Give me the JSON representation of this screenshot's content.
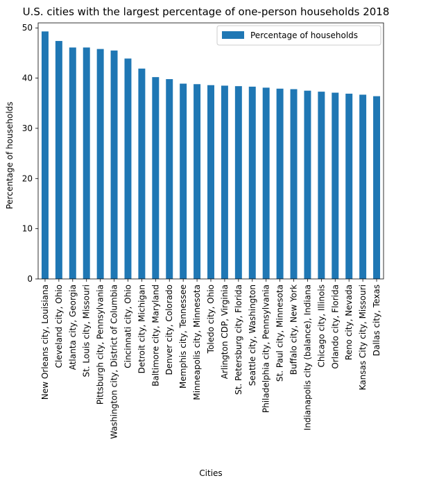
{
  "chart_data": {
    "type": "bar",
    "title": "U.S. cities with the largest percentage of one-person households 2018",
    "xlabel": "Cities",
    "ylabel": "Percentage of households",
    "ylim": [
      0,
      51
    ],
    "yticks": [
      0,
      10,
      20,
      30,
      40,
      50
    ],
    "grid": false,
    "legend_position": "top-right",
    "bar_color": "#1f77b4",
    "series": [
      {
        "name": "Percentage of households",
        "values": [
          49.3,
          47.4,
          46.1,
          46.1,
          45.8,
          45.5,
          43.9,
          41.9,
          40.2,
          39.8,
          38.9,
          38.8,
          38.6,
          38.5,
          38.4,
          38.3,
          38.1,
          37.9,
          37.8,
          37.5,
          37.3,
          37.1,
          36.9,
          36.7,
          36.4
        ]
      }
    ],
    "categories": [
      "New Orleans city, Louisiana",
      "Cleveland city, Ohio",
      "Atlanta city, Georgia",
      "St. Louis city, Missouri",
      "Pittsburgh city, Pennsylvania",
      "Washington city, District of Columbia",
      "Cincinnati city, Ohio",
      "Detroit city, Michigan",
      "Baltimore city, Maryland",
      "Denver city, Colorado",
      "Memphis city, Tennessee",
      "Minneapolis city, Minnesota",
      "Toledo city, Ohio",
      "Arlington CDP, Virginia",
      "St. Petersburg city, Florida",
      "Seattle city, Washington",
      "Philadelphia city, Pennsylvania",
      "St. Paul city, Minnesota",
      "Buffalo city, New York",
      "Indianapolis city (balance), Indiana",
      "Chicago city, Illinois",
      "Orlando city, Florida",
      "Reno city, Nevada",
      "Kansas City city, Missouri",
      "Dallas city, Texas"
    ]
  }
}
